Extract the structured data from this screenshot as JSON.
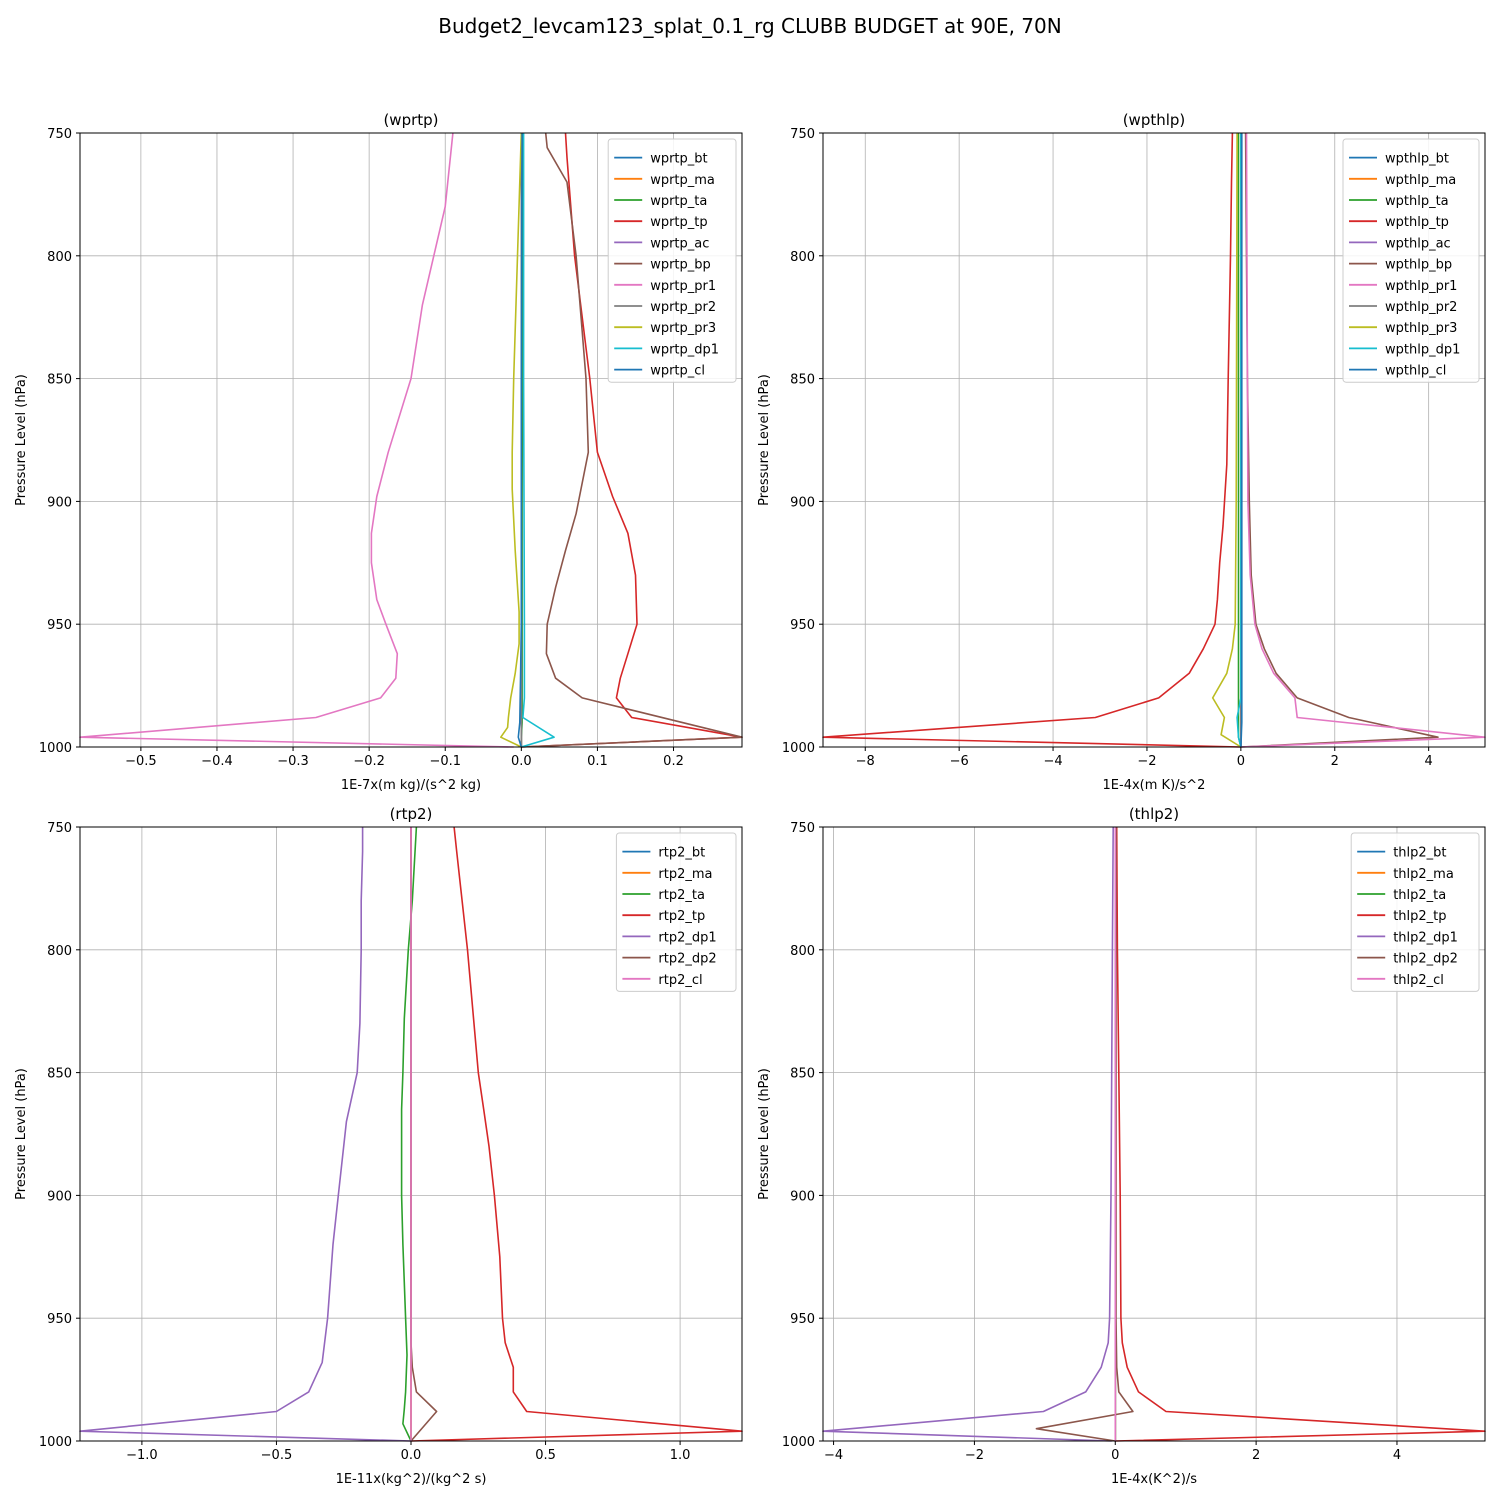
{
  "figure": {
    "title": "Budget2_levcam123_splat_0.1_rg CLUBB BUDGET at 90E, 70N"
  },
  "colors": [
    "#1f77b4",
    "#ff7f0e",
    "#2ca02c",
    "#d62728",
    "#9467bd",
    "#8c564b",
    "#e377c2",
    "#7f7f7f",
    "#bcbd22",
    "#17becf",
    "#1f77b4"
  ],
  "chart_data": [
    {
      "type": "line",
      "title": "(wprtp)",
      "xlabel": "1E-7x(m kg)/(s^2 kg)",
      "ylabel": "Pressure Level (hPa)",
      "xlim": [
        -0.58,
        0.29
      ],
      "ylim": [
        1000,
        750
      ],
      "xticks": [
        -0.5,
        -0.4,
        -0.3,
        -0.2,
        -0.1,
        0.0,
        0.1,
        0.2
      ],
      "xticklabels": [
        "−0.5",
        "−0.4",
        "−0.3",
        "−0.2",
        "−0.1",
        "0.0",
        "0.1",
        "0.2"
      ],
      "yticks": [
        750,
        800,
        850,
        900,
        950,
        1000
      ],
      "yticklabels": [
        "750",
        "800",
        "850",
        "900",
        "950",
        "1000"
      ],
      "grid": true,
      "legend_position": "top-right",
      "series": [
        {
          "name": "wprtp_bt",
          "x": [
            0,
            0
          ],
          "y": [
            1000,
            750
          ]
        },
        {
          "name": "wprtp_ma",
          "x": [
            0,
            0
          ],
          "y": [
            1000,
            750
          ]
        },
        {
          "name": "wprtp_ta",
          "x": [
            0,
            0,
            0.001,
            0.001,
            0.002
          ],
          "y": [
            1000,
            996,
            990,
            900,
            750
          ]
        },
        {
          "name": "wprtp_tp",
          "x": [
            0,
            0.29,
            0.145,
            0.125,
            0.13,
            0.14,
            0.152,
            0.15,
            0.14,
            0.12,
            0.1,
            0.09,
            0.07,
            0.06,
            0.058
          ],
          "y": [
            1000,
            996,
            988,
            980,
            972,
            962,
            950,
            930,
            913,
            898,
            880,
            850,
            800,
            760,
            750
          ]
        },
        {
          "name": "wprtp_ac",
          "x": [
            0,
            0
          ],
          "y": [
            1000,
            750
          ]
        },
        {
          "name": "wprtp_bp",
          "x": [
            0,
            0.29,
            0.08,
            0.045,
            0.033,
            0.034,
            0.045,
            0.058,
            0.072,
            0.088,
            0.085,
            0.072,
            0.06,
            0.034,
            0.032
          ],
          "y": [
            1000,
            996,
            980,
            972,
            962,
            950,
            935,
            920,
            905,
            880,
            850,
            800,
            770,
            756,
            750
          ]
        },
        {
          "name": "wprtp_pr1",
          "x": [
            -0.01,
            -0.58,
            -0.27,
            -0.185,
            -0.165,
            -0.163,
            -0.178,
            -0.19,
            -0.197,
            -0.197,
            -0.19,
            -0.175,
            -0.145,
            -0.13,
            -0.115,
            -0.1,
            -0.09
          ],
          "y": [
            1000,
            996,
            988,
            980,
            972,
            962,
            950,
            940,
            925,
            913,
            898,
            880,
            850,
            820,
            800,
            780,
            750
          ]
        },
        {
          "name": "wprtp_pr2",
          "x": [
            0,
            0
          ],
          "y": [
            1000,
            750
          ]
        },
        {
          "name": "wprtp_pr3",
          "x": [
            0,
            -0.027,
            -0.018,
            -0.017,
            -0.014,
            -0.008,
            -0.003,
            -0.003,
            -0.008,
            -0.012,
            -0.012,
            -0.01,
            -0.005,
            0
          ],
          "y": [
            1000,
            996,
            992,
            988,
            980,
            970,
            958,
            945,
            920,
            895,
            880,
            850,
            800,
            750
          ]
        },
        {
          "name": "wprtp_dp1",
          "x": [
            0,
            0.043,
            0.002,
            0.004,
            0.004,
            0.003,
            0.003
          ],
          "y": [
            1000,
            996,
            988,
            980,
            950,
            850,
            750
          ]
        },
        {
          "name": "wprtp_cl",
          "x": [
            0,
            -0.004,
            -0.002,
            -0.001,
            0,
            0,
            0.001
          ],
          "y": [
            1000,
            996,
            990,
            970,
            950,
            850,
            750
          ]
        }
      ]
    },
    {
      "type": "line",
      "title": "(wpthlp)",
      "xlabel": "1E-4x(m K)/s^2",
      "ylabel": "Pressure Level (hPa)",
      "xlim": [
        -8.9,
        5.2
      ],
      "ylim": [
        1000,
        750
      ],
      "xticks": [
        -8,
        -6,
        -4,
        -2,
        0,
        2,
        4
      ],
      "xticklabels": [
        "−8",
        "−6",
        "−4",
        "−2",
        "0",
        "2",
        "4"
      ],
      "yticks": [
        750,
        800,
        850,
        900,
        950,
        1000
      ],
      "yticklabels": [
        "750",
        "800",
        "850",
        "900",
        "950",
        "1000"
      ],
      "grid": true,
      "legend_position": "top-right",
      "series": [
        {
          "name": "wpthlp_bt",
          "x": [
            0,
            0
          ],
          "y": [
            1000,
            750
          ]
        },
        {
          "name": "wpthlp_ma",
          "x": [
            0,
            0
          ],
          "y": [
            1000,
            750
          ]
        },
        {
          "name": "wpthlp_ta",
          "x": [
            0,
            -0.05,
            -0.05,
            -0.05
          ],
          "y": [
            1000,
            996,
            950,
            750
          ]
        },
        {
          "name": "wpthlp_tp",
          "x": [
            0,
            -8.9,
            -3.1,
            -1.75,
            -1.1,
            -0.8,
            -0.55,
            -0.5,
            -0.45,
            -0.38,
            -0.3,
            -0.27,
            -0.22,
            -0.2,
            -0.18
          ],
          "y": [
            1000,
            996,
            988,
            980,
            970,
            960,
            950,
            940,
            925,
            910,
            885,
            850,
            800,
            770,
            750
          ]
        },
        {
          "name": "wpthlp_ac",
          "x": [
            0,
            0
          ],
          "y": [
            1000,
            750
          ]
        },
        {
          "name": "wpthlp_bp",
          "x": [
            0,
            4.2,
            2.3,
            1.2,
            0.75,
            0.5,
            0.32,
            0.22,
            0.18,
            0.14,
            0.1
          ],
          "y": [
            1000,
            996,
            988,
            980,
            970,
            960,
            950,
            930,
            900,
            850,
            750
          ]
        },
        {
          "name": "wpthlp_pr1",
          "x": [
            0,
            5.2,
            1.2,
            1.15,
            0.7,
            0.45,
            0.3,
            0.2,
            0.15,
            0.12
          ],
          "y": [
            1000,
            996,
            988,
            980,
            970,
            960,
            950,
            930,
            900,
            750
          ]
        },
        {
          "name": "wpthlp_pr2",
          "x": [
            0,
            0
          ],
          "y": [
            1000,
            750
          ]
        },
        {
          "name": "wpthlp_pr3",
          "x": [
            0,
            -0.42,
            -0.35,
            -0.6,
            -0.3,
            -0.18,
            -0.12,
            -0.1,
            -0.08
          ],
          "y": [
            1000,
            995,
            988,
            980,
            970,
            960,
            950,
            900,
            750
          ]
        },
        {
          "name": "wpthlp_dp1",
          "x": [
            0,
            -0.05,
            -0.08,
            0,
            0
          ],
          "y": [
            1000,
            996,
            988,
            980,
            750
          ]
        },
        {
          "name": "wpthlp_cl",
          "x": [
            0,
            0.02,
            0.02,
            0.02
          ],
          "y": [
            1000,
            990,
            900,
            750
          ]
        }
      ]
    },
    {
      "type": "line",
      "title": "(rtp2)",
      "xlabel": "1E-11x(kg^2)/(kg^2 s)",
      "ylabel": "Pressure Level (hPa)",
      "xlim": [
        -1.23,
        1.23
      ],
      "ylim": [
        1000,
        750
      ],
      "xticks": [
        -1.0,
        -0.5,
        0.0,
        0.5,
        1.0
      ],
      "xticklabels": [
        "−1.0",
        "−0.5",
        "0.0",
        "0.5",
        "1.0"
      ],
      "yticks": [
        750,
        800,
        850,
        900,
        950,
        1000
      ],
      "yticklabels": [
        "750",
        "800",
        "850",
        "900",
        "950",
        "1000"
      ],
      "grid": true,
      "legend_position": "top-right",
      "series": [
        {
          "name": "rtp2_bt",
          "x": [
            0,
            0
          ],
          "y": [
            1000,
            750
          ]
        },
        {
          "name": "rtp2_ma",
          "x": [
            0,
            0
          ],
          "y": [
            1000,
            750
          ]
        },
        {
          "name": "rtp2_ta",
          "x": [
            0,
            -0.03,
            -0.025,
            -0.02,
            -0.015,
            -0.02,
            -0.03,
            -0.035,
            -0.035,
            -0.03,
            -0.025,
            -0.01,
            0.005,
            0.02
          ],
          "y": [
            1000,
            993,
            987,
            980,
            965,
            950,
            920,
            900,
            865,
            850,
            828,
            800,
            780,
            750
          ]
        },
        {
          "name": "rtp2_tp",
          "x": [
            0,
            1.23,
            0.43,
            0.38,
            0.38,
            0.35,
            0.34,
            0.33,
            0.31,
            0.29,
            0.27,
            0.25,
            0.23,
            0.21,
            0.19,
            0.17,
            0.16
          ],
          "y": [
            1000,
            996,
            988,
            980,
            970,
            960,
            950,
            925,
            900,
            880,
            865,
            850,
            825,
            800,
            780,
            760,
            750
          ]
        },
        {
          "name": "rtp2_dp1",
          "x": [
            0,
            -1.23,
            -0.5,
            -0.38,
            -0.33,
            -0.31,
            -0.3,
            -0.29,
            -0.27,
            -0.24,
            -0.2,
            -0.19,
            -0.185,
            -0.185,
            -0.18,
            -0.18
          ],
          "y": [
            1000,
            996,
            988,
            980,
            968,
            950,
            935,
            920,
            900,
            870,
            850,
            830,
            800,
            780,
            760,
            750
          ]
        },
        {
          "name": "rtp2_dp2",
          "x": [
            0,
            0.095,
            0.02,
            0.005,
            0,
            0
          ],
          "y": [
            1000,
            988,
            980,
            970,
            960,
            750
          ]
        },
        {
          "name": "rtp2_cl",
          "x": [
            0,
            0,
            0
          ],
          "y": [
            1000,
            960,
            750
          ]
        }
      ]
    },
    {
      "type": "line",
      "title": "(thlp2)",
      "xlabel": "1E-4x(K^2)/s",
      "ylabel": "Pressure Level (hPa)",
      "xlim": [
        -4.15,
        5.25
      ],
      "ylim": [
        1000,
        750
      ],
      "xticks": [
        -4,
        -2,
        0,
        2,
        4
      ],
      "xticklabels": [
        "−4",
        "−2",
        "0",
        "2",
        "4"
      ],
      "yticks": [
        750,
        800,
        850,
        900,
        950,
        1000
      ],
      "yticklabels": [
        "750",
        "800",
        "850",
        "900",
        "950",
        "1000"
      ],
      "grid": true,
      "legend_position": "top-right",
      "series": [
        {
          "name": "thlp2_bt",
          "x": [
            0,
            0
          ],
          "y": [
            1000,
            750
          ]
        },
        {
          "name": "thlp2_ma",
          "x": [
            0,
            0
          ],
          "y": [
            1000,
            750
          ]
        },
        {
          "name": "thlp2_ta",
          "x": [
            0,
            0
          ],
          "y": [
            1000,
            750
          ]
        },
        {
          "name": "thlp2_tp",
          "x": [
            0,
            5.25,
            0.72,
            0.33,
            0.17,
            0.1,
            0.08,
            0.07,
            0.05,
            0.03,
            0.02
          ],
          "y": [
            1000,
            996,
            988,
            980,
            970,
            960,
            950,
            900,
            850,
            800,
            750
          ]
        },
        {
          "name": "thlp2_dp1",
          "x": [
            -0.05,
            -4.15,
            -1.02,
            -0.42,
            -0.2,
            -0.1,
            -0.08,
            -0.06,
            -0.05,
            -0.04,
            -0.03
          ],
          "y": [
            1000,
            996,
            988,
            980,
            970,
            960,
            950,
            900,
            850,
            800,
            750
          ]
        },
        {
          "name": "thlp2_dp2",
          "x": [
            0,
            -1.12,
            0.25,
            0.05,
            0.02,
            0.01,
            0.01
          ],
          "y": [
            1000,
            995,
            988,
            980,
            970,
            950,
            750
          ]
        },
        {
          "name": "thlp2_cl",
          "x": [
            0,
            0,
            0
          ],
          "y": [
            1000,
            950,
            750
          ]
        }
      ]
    }
  ]
}
